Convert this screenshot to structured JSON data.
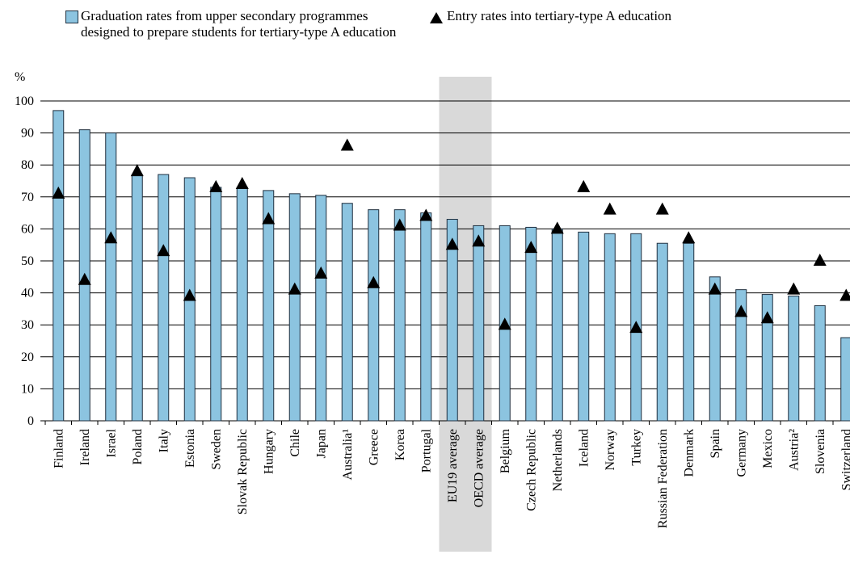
{
  "chart_data": {
    "type": "bar",
    "y_label": "%",
    "categories": [
      "Finland",
      "Ireland",
      "Israel",
      "Poland",
      "Italy",
      "Estonia",
      "Sweden",
      "Slovak Republic",
      "Hungary",
      "Chile",
      "Japan",
      "Australia¹",
      "Greece",
      "Korea",
      "Portugal",
      "EU19 average",
      "OECD average",
      "Belgium",
      "Czech Republic",
      "Netherlands",
      "Iceland",
      "Norway",
      "Turkey",
      "Russian Federation",
      "Denmark",
      "Spain",
      "Germany",
      "Mexico",
      "Austria²",
      "Slovenia",
      "Switzerland"
    ],
    "series": [
      {
        "name": "Graduation rates from upper secondary programmes designed to prepare students for tertiary-type A education",
        "color": "#8cc4e0",
        "marker": "bar",
        "values": [
          97,
          91,
          90,
          77,
          77,
          76,
          73,
          73,
          72,
          71,
          70.5,
          68,
          66,
          66,
          65,
          63,
          61,
          61,
          60.5,
          60,
          59,
          58.5,
          58.5,
          55.5,
          55.5,
          45,
          41,
          39.5,
          39,
          36,
          26
        ]
      },
      {
        "name": "Entry rates into tertiary-type A education",
        "color": "#000000",
        "marker": "triangle",
        "values": [
          71,
          44,
          57,
          78,
          53,
          39,
          73,
          74,
          63,
          41,
          46,
          86,
          43,
          61,
          64,
          55,
          56,
          30,
          54,
          60,
          73,
          66,
          29,
          66,
          57,
          41,
          34,
          32,
          41,
          50,
          39
        ]
      }
    ],
    "highlight": [
      15,
      16
    ],
    "ylim": [
      0,
      100
    ],
    "yticks": [
      0,
      10,
      20,
      30,
      40,
      50,
      60,
      70,
      80,
      90,
      100
    ],
    "grid": true
  }
}
